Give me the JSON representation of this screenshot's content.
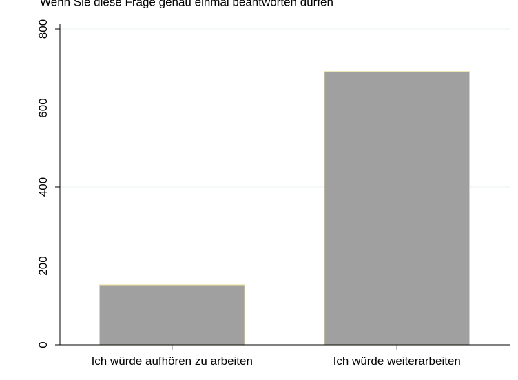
{
  "header": {
    "partial_text": "Wenn Sie diese Frage genau einmal beantworten dürfen"
  },
  "colors": {
    "bar_fill": "#a0a0a0",
    "bar_stroke": "#e8e0a0",
    "grid": "#eaf2f3",
    "axis": "#000000"
  },
  "chart_data": {
    "type": "bar",
    "categories": [
      "Ich würde aufhören zu arbeiten",
      "Ich würde weiterarbeiten"
    ],
    "values": [
      152,
      692
    ],
    "xlabel": "",
    "ylabel": "",
    "ylim": [
      0,
      800
    ],
    "yticks": [
      0,
      200,
      400,
      600,
      800
    ],
    "ytick_labels": [
      "0",
      "200",
      "400",
      "600",
      "800"
    ],
    "grid": true,
    "legend": "none"
  }
}
